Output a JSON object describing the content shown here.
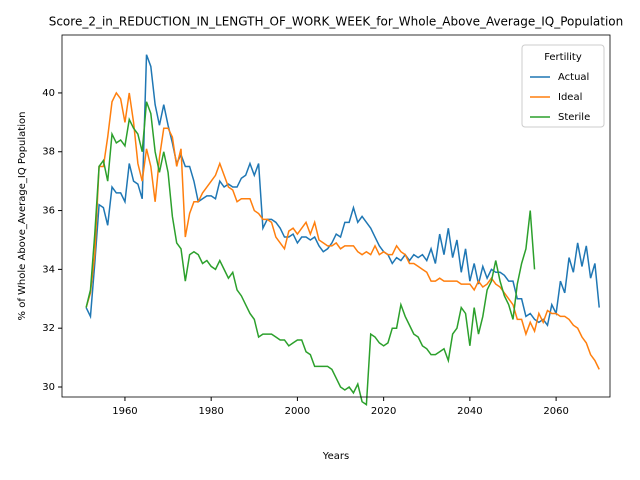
{
  "chart_data": {
    "type": "line",
    "title": "Score_2_in_REDUCTION_IN_LENGTH_OF_WORK_WEEK_for_Whole_Above_Average_IQ_Population",
    "xlabel": "Years",
    "ylabel": "% of Whole Above_Average_IQ Population",
    "legend_title": "Fertility",
    "legend": "upper right",
    "x": [
      1951,
      1952,
      1953,
      1954,
      1955,
      1956,
      1957,
      1958,
      1959,
      1960,
      1961,
      1962,
      1963,
      1964,
      1965,
      1966,
      1967,
      1968,
      1969,
      1970,
      1971,
      1972,
      1973,
      1974,
      1975,
      1976,
      1977,
      1978,
      1979,
      1980,
      1981,
      1982,
      1983,
      1984,
      1985,
      1986,
      1987,
      1988,
      1989,
      1990,
      1991,
      1992,
      1993,
      1994,
      1995,
      1996,
      1997,
      1998,
      1999,
      2000,
      2001,
      2002,
      2003,
      2004,
      2005,
      2006,
      2007,
      2008,
      2009,
      2010,
      2011,
      2012,
      2013,
      2014,
      2015,
      2016,
      2017,
      2018,
      2019,
      2020,
      2021,
      2022,
      2023,
      2024,
      2025,
      2026,
      2027,
      2028,
      2029,
      2030,
      2031,
      2032,
      2033,
      2034,
      2035,
      2036,
      2037,
      2038,
      2039,
      2040,
      2041,
      2042,
      2043,
      2044,
      2045,
      2046,
      2047,
      2048,
      2049,
      2050,
      2051,
      2052,
      2053,
      2054,
      2055,
      2056,
      2057,
      2058,
      2059,
      2060,
      2061,
      2062,
      2063,
      2064,
      2065,
      2066,
      2067,
      2068,
      2069,
      2070
    ],
    "series": [
      {
        "name": "Actual",
        "color": "#1f77b4",
        "values": [
          32.7,
          32.4,
          34.2,
          36.2,
          36.1,
          35.5,
          36.8,
          36.6,
          36.6,
          36.3,
          37.6,
          37.0,
          36.9,
          36.4,
          41.3,
          40.9,
          39.6,
          38.9,
          39.6,
          38.9,
          38.3,
          37.6,
          37.9,
          37.5,
          37.5,
          37.0,
          36.3,
          36.4,
          36.5,
          36.5,
          36.4,
          37.0,
          36.8,
          36.9,
          36.8,
          36.8,
          37.1,
          37.2,
          37.6,
          37.2,
          37.6,
          35.4,
          35.7,
          35.7,
          35.6,
          35.4,
          35.1,
          35.1,
          35.2,
          34.9,
          35.1,
          35.1,
          35.0,
          35.1,
          34.8,
          34.6,
          34.7,
          34.9,
          35.2,
          35.1,
          35.6,
          35.6,
          36.1,
          35.6,
          35.8,
          35.6,
          35.4,
          35.1,
          34.8,
          34.6,
          34.5,
          34.2,
          34.4,
          34.3,
          34.5,
          34.3,
          34.5,
          34.4,
          34.5,
          34.3,
          34.7,
          34.2,
          35.2,
          34.5,
          35.4,
          34.4,
          35.0,
          33.9,
          34.7,
          33.6,
          34.2,
          33.5,
          34.1,
          33.7,
          34.0,
          33.9,
          33.9,
          33.8,
          33.6,
          33.6,
          33.0,
          33.0,
          32.4,
          32.5,
          32.3,
          32.2,
          32.3,
          32.1,
          32.8,
          32.5,
          33.6,
          33.2,
          34.4,
          33.9,
          34.9,
          34.1,
          34.8,
          33.7,
          34.2,
          32.7
        ]
      },
      {
        "name": "Ideal",
        "color": "#ff7f0e",
        "values": [
          32.7,
          33.2,
          34.5,
          37.5,
          37.5,
          38.5,
          39.7,
          40.0,
          39.8,
          39.0,
          40.0,
          39.0,
          37.6,
          37.0,
          38.1,
          37.5,
          36.3,
          37.8,
          38.8,
          38.8,
          38.5,
          37.5,
          38.1,
          35.1,
          35.9,
          36.3,
          36.3,
          36.6,
          36.8,
          37.0,
          37.2,
          37.6,
          37.2,
          36.8,
          36.7,
          36.3,
          36.4,
          36.4,
          36.4,
          36.0,
          35.9,
          35.7,
          35.7,
          35.6,
          35.1,
          34.9,
          34.7,
          35.3,
          35.4,
          35.2,
          35.4,
          35.6,
          35.2,
          35.6,
          35.0,
          34.9,
          34.8,
          34.8,
          34.9,
          34.7,
          34.8,
          34.8,
          34.8,
          34.6,
          34.5,
          34.6,
          34.5,
          34.8,
          34.5,
          34.6,
          34.5,
          34.5,
          34.8,
          34.6,
          34.5,
          34.2,
          34.2,
          34.1,
          34.0,
          33.9,
          33.6,
          33.6,
          33.7,
          33.6,
          33.6,
          33.6,
          33.6,
          33.5,
          33.5,
          33.5,
          33.3,
          33.6,
          33.4,
          33.5,
          33.7,
          33.5,
          33.4,
          33.2,
          33.0,
          32.8,
          32.3,
          32.3,
          31.8,
          32.2,
          31.9,
          32.5,
          32.2,
          32.6,
          32.5,
          32.5,
          32.4,
          32.4,
          32.3,
          32.1,
          32.0,
          31.7,
          31.5,
          31.1,
          30.9,
          30.6
        ]
      },
      {
        "name": "Sterile",
        "color": "#2ca02c",
        "values": [
          32.7,
          33.3,
          35.2,
          37.5,
          37.7,
          37.0,
          38.6,
          38.3,
          38.4,
          38.2,
          39.1,
          38.8,
          38.6,
          38.0,
          39.7,
          39.3,
          38.0,
          37.3,
          38.0,
          37.3,
          35.8,
          34.9,
          34.7,
          33.6,
          34.5,
          34.6,
          34.5,
          34.2,
          34.3,
          34.1,
          34.0,
          34.3,
          34.0,
          33.7,
          33.9,
          33.3,
          33.1,
          32.8,
          32.5,
          32.3,
          31.7,
          31.8,
          31.8,
          31.8,
          31.7,
          31.6,
          31.6,
          31.4,
          31.5,
          31.6,
          31.6,
          31.2,
          31.1,
          30.7,
          30.7,
          30.7,
          30.7,
          30.6,
          30.3,
          30.0,
          29.9,
          30.0,
          29.8,
          30.1,
          29.5,
          29.4,
          31.8,
          31.7,
          31.5,
          31.4,
          31.5,
          32.0,
          32.0,
          32.8,
          32.4,
          32.1,
          31.8,
          31.7,
          31.4,
          31.3,
          31.1,
          31.1,
          31.2,
          31.3,
          30.9,
          31.8,
          32.0,
          32.7,
          32.5,
          31.4,
          32.7,
          31.8,
          32.4,
          33.3,
          33.6,
          34.3,
          33.6,
          33.1,
          32.8,
          32.3,
          33.5,
          34.2,
          34.7,
          36.0,
          34.0,
          null,
          null,
          null,
          null,
          null,
          null,
          null,
          null,
          null,
          null,
          null,
          null,
          null,
          null,
          null
        ]
      }
    ],
    "xlim": [
      1945.4,
      2072.5
    ],
    "xticks": [
      1960,
      1980,
      2000,
      2020,
      2040,
      2060
    ],
    "ylim": [
      29.66,
      41.97
    ],
    "yticks": [
      30,
      32,
      34,
      36,
      38,
      40
    ]
  }
}
